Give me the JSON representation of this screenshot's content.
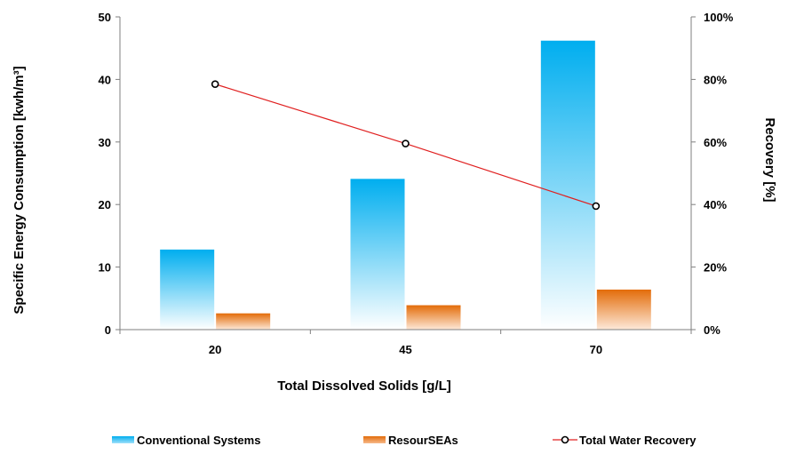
{
  "chart_data": {
    "type": "bar",
    "categories": [
      "20",
      "45",
      "70"
    ],
    "xlabel": "Total Dissolved Solids [g/L]",
    "ylabel": "Specific Energy Consumption [kwh/m³]",
    "y2label": "Recovery [%]",
    "ylim": [
      0,
      50
    ],
    "y2lim": [
      0,
      100
    ],
    "y_ticks": [
      "0",
      "10",
      "20",
      "30",
      "40",
      "50"
    ],
    "y2_ticks": [
      "0%",
      "20%",
      "40%",
      "60%",
      "80%",
      "100%"
    ],
    "series": [
      {
        "name": "Conventional Systems",
        "type": "bar",
        "axis": "left",
        "color": "#00aeef",
        "values": [
          12.8,
          24.1,
          46.2
        ]
      },
      {
        "name": "ResourSEAs",
        "type": "bar",
        "axis": "right-none",
        "color": "#e36c09",
        "values": [
          2.6,
          3.9,
          6.4
        ]
      },
      {
        "name": "Total Water Recovery",
        "type": "line",
        "axis": "right",
        "color": "#e02020",
        "marker_color": "#000000",
        "values": [
          78.5,
          59.5,
          39.5
        ]
      }
    ],
    "legend_position": "bottom",
    "grid": false
  }
}
